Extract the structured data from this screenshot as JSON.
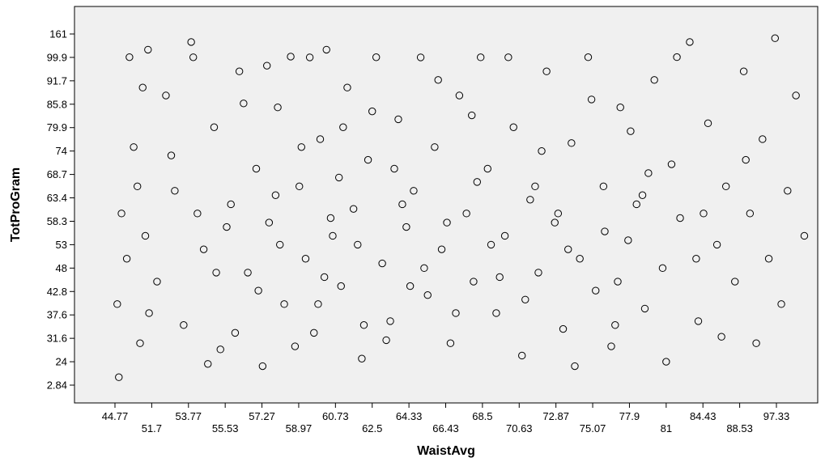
{
  "chart_data": {
    "type": "scatter",
    "xlabel": "WaistAvg",
    "ylabel": "TotProGram",
    "xlim": [
      37.2,
      107.2
    ],
    "xticks": [
      44.77,
      51.7,
      53.77,
      55.53,
      57.27,
      58.97,
      60.73,
      62.5,
      64.33,
      66.43,
      68.5,
      70.63,
      72.87,
      75.07,
      77.9,
      81,
      84.43,
      88.53,
      97.33
    ],
    "ylim": [
      -13.3,
      233
    ],
    "yticks": [
      2.84,
      24,
      31.6,
      37.6,
      42.8,
      48,
      53,
      58.3,
      63.4,
      68.7,
      74,
      79.9,
      85.8,
      91.7,
      99.9,
      161
    ],
    "color": "#000000",
    "x": [
      45.2,
      46,
      47.5,
      48.3,
      49.5,
      50.5,
      51,
      52,
      52.5,
      53,
      53.5,
      54,
      54.5,
      55,
      55.3,
      55.8,
      56.2,
      56.6,
      57,
      57.3,
      57.6,
      58,
      58.3,
      58.6,
      59,
      59.3,
      59.7,
      60,
      60.3,
      60.6,
      61,
      61.3,
      61.6,
      62,
      62.3,
      62.7,
      63,
      63.4,
      63.8,
      64.2,
      64.6,
      65,
      65.4,
      65.8,
      66.2,
      66.7,
      67.2,
      67.6,
      68,
      68.4,
      68.8,
      69.3,
      69.8,
      70.3,
      70.8,
      71.3,
      71.8,
      72.3,
      72.8,
      73.3,
      73.8,
      74.3,
      74.8,
      75.3,
      75.9,
      76.5,
      77.2,
      77.8,
      78.5,
      79.2,
      80,
      80.7,
      81.5,
      82.3,
      83.2,
      84,
      85,
      86,
      87,
      88,
      89.5,
      91,
      92.5,
      94,
      95.5,
      97,
      98.5,
      100,
      102,
      104,
      45.5,
      47,
      49,
      50,
      51.2,
      52.8,
      53.9,
      54.7,
      55.6,
      56.4,
      57.1,
      57.9,
      58.8,
      59.5,
      60.2,
      60.9,
      61.8,
      62.5,
      63.2,
      64,
      65.2,
      66,
      67,
      68.2,
      69,
      70,
      71,
      72,
      73,
      74,
      75,
      76,
      77,
      78,
      79,
      81,
      82,
      84.5,
      86.5,
      90,
      54.2,
      55.1,
      56,
      57.5,
      58.1,
      59.1,
      59.9,
      60.5,
      61.1,
      62.1,
      63.6,
      64.4,
      66.5,
      67.9,
      69.5,
      71.6,
      73.6,
      76.8,
      79.5,
      83.8
    ],
    "y": [
      40,
      60,
      100.5,
      75,
      30,
      55,
      120,
      45,
      88,
      65,
      35,
      100.2,
      52,
      80,
      28,
      62,
      95,
      47,
      70,
      20,
      58,
      85,
      40,
      102,
      66,
      50,
      33,
      77,
      120,
      55,
      44,
      90,
      61,
      25,
      72,
      100.3,
      49,
      36,
      82,
      57,
      65,
      99.95,
      42,
      75,
      52,
      30,
      88,
      60,
      45,
      100.1,
      70,
      38,
      55,
      80,
      26,
      63,
      47,
      95,
      58,
      34,
      76,
      50,
      100.4,
      43,
      66,
      29,
      85,
      54,
      62,
      39,
      92,
      48,
      71,
      59,
      140,
      36,
      81,
      53,
      66,
      45,
      95,
      60,
      30,
      77,
      50,
      150,
      40,
      65,
      88,
      55,
      10,
      50,
      66,
      90,
      38,
      73,
      140,
      22,
      57,
      86,
      43,
      64,
      29,
      99.92,
      46,
      68,
      53,
      84,
      31,
      62,
      48,
      92,
      38,
      67,
      53,
      100.05,
      41,
      74,
      60,
      20,
      87,
      56,
      45,
      79,
      64,
      24,
      100.6,
      60,
      32,
      72,
      60,
      47,
      33,
      97,
      53,
      75,
      40,
      59,
      80,
      35,
      70,
      44,
      58,
      83,
      46,
      66,
      52,
      35,
      69,
      50
    ]
  }
}
